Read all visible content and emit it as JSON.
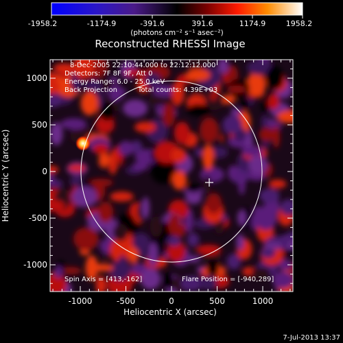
{
  "colorbar": {
    "ticks": [
      "-1958.2",
      "-1174.9",
      "-391.6",
      "391.6",
      "1174.9",
      "1958.2"
    ],
    "units_text": "(photons cm⁻² s⁻¹ asec⁻²)"
  },
  "title": "Reconstructed RHESSI Image",
  "info": {
    "line1": "8-Dec-2005 22:10:44.000 to 22:12:12.000",
    "line2": "Detectors: 7F 8F 9F, Att 0",
    "line3": "Energy Range: 6.0 - 25.0 keV",
    "line4_left": "Back Projection",
    "line4_right": "Total counts: 4.39E+03"
  },
  "footer": {
    "spin_axis": "Spin Axis = [413,-162]",
    "flare_position": "Flare Position = [-940,289]"
  },
  "axes": {
    "xlabel": "Heliocentric X (arcsec)",
    "ylabel": "Heliocentric Y (arcsec)",
    "x_ticks": [
      "-1000",
      "-500",
      "0",
      "500",
      "1000"
    ],
    "y_ticks": [
      "1000",
      "500",
      "0",
      "-500",
      "-1000"
    ]
  },
  "timestamp": "7-Jul-2013 13:37"
}
